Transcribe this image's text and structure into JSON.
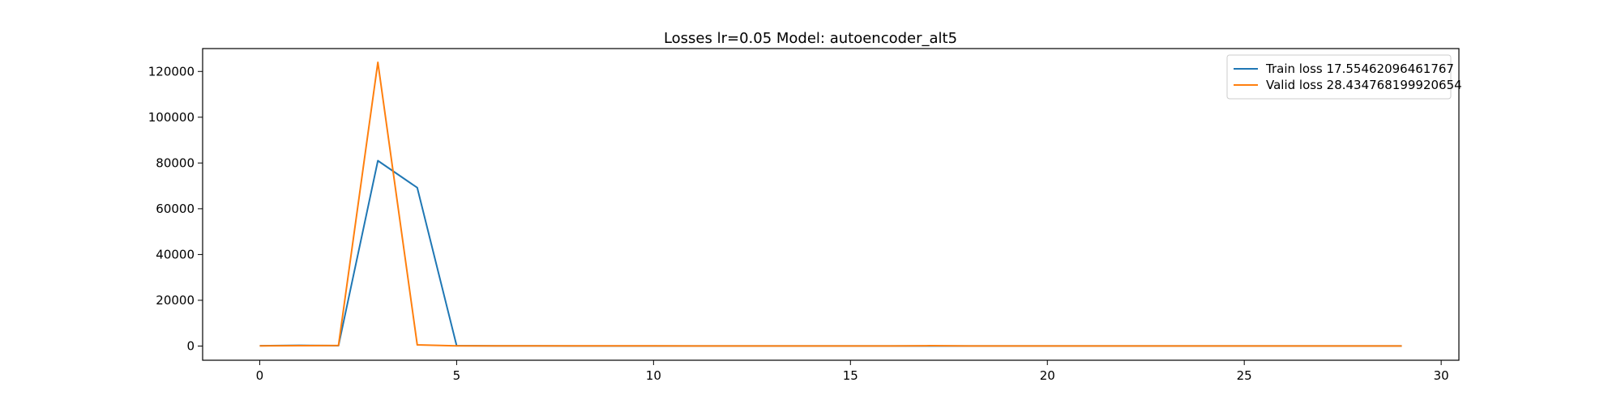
{
  "chart_data": {
    "type": "line",
    "title": "Losses lr=0.05 Model: autoencoder_alt5",
    "xlabel": "",
    "ylabel": "",
    "xlim": [
      -1.45,
      30.45
    ],
    "ylim": [
      -6200,
      130000
    ],
    "x_ticks": [
      0,
      5,
      10,
      15,
      20,
      25,
      30
    ],
    "y_ticks": [
      0,
      20000,
      40000,
      60000,
      80000,
      100000,
      120000
    ],
    "x_tick_labels": [
      "0",
      "5",
      "10",
      "15",
      "20",
      "25",
      "30"
    ],
    "y_tick_labels": [
      "0",
      "20000",
      "40000",
      "60000",
      "80000",
      "100000",
      "120000"
    ],
    "x": [
      0,
      1,
      2,
      3,
      4,
      5,
      6,
      7,
      8,
      9,
      10,
      11,
      12,
      13,
      14,
      15,
      16,
      17,
      18,
      19,
      20,
      21,
      22,
      23,
      24,
      25,
      26,
      27,
      28,
      29
    ],
    "grid": false,
    "legend_position": "top-right",
    "series": [
      {
        "name": "Train loss 17.55462096461767",
        "color": "#1f77b4",
        "values": [
          120,
          280,
          150,
          81000,
          69200,
          150,
          80,
          60,
          55,
          50,
          48,
          46,
          44,
          42,
          40,
          38,
          36,
          35,
          34,
          33,
          32,
          31,
          30,
          29,
          28,
          27,
          26,
          25,
          24,
          23
        ]
      },
      {
        "name": "Valid loss 28.434768199920654",
        "color": "#ff7f0e",
        "values": [
          100,
          150,
          250,
          124000,
          500,
          100,
          80,
          70,
          65,
          60,
          58,
          56,
          54,
          52,
          50,
          48,
          46,
          150,
          44,
          42,
          40,
          38,
          36,
          35,
          34,
          33,
          32,
          31,
          30,
          29
        ]
      }
    ]
  }
}
